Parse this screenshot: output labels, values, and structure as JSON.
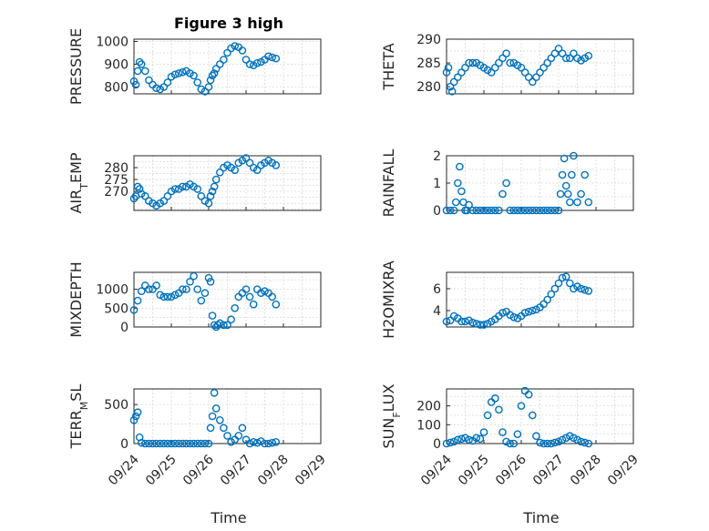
{
  "figure_title": "Figure 3 high",
  "x_label": "Time",
  "x_ticks": [
    "09/24",
    "09/25",
    "09/26",
    "09/27",
    "09/28",
    "09/29"
  ],
  "marker_color": "#0072bd",
  "chart_data": [
    {
      "type": "scatter",
      "ylabel_main": "PRESSURE",
      "ylabel_sub": "",
      "ylabel_tail": "",
      "yticks": [
        800,
        900,
        1000
      ],
      "ylim": [
        770,
        1010
      ],
      "x": [
        0,
        0.05,
        0.1,
        0.15,
        0.2,
        0.3,
        0.4,
        0.5,
        0.6,
        0.7,
        0.8,
        0.9,
        1.0,
        1.1,
        1.2,
        1.3,
        1.4,
        1.5,
        1.6,
        1.7,
        1.8,
        1.9,
        2.0,
        2.05,
        2.1,
        2.15,
        2.2,
        2.3,
        2.4,
        2.5,
        2.6,
        2.7,
        2.8,
        2.9,
        3.0,
        3.1,
        3.2,
        3.3,
        3.4,
        3.5,
        3.6,
        3.7,
        3.8
      ],
      "y": [
        825,
        810,
        870,
        910,
        900,
        870,
        830,
        810,
        795,
        790,
        800,
        820,
        845,
        855,
        860,
        865,
        870,
        860,
        850,
        820,
        790,
        780,
        800,
        830,
        850,
        860,
        880,
        900,
        920,
        950,
        970,
        980,
        975,
        960,
        920,
        900,
        895,
        905,
        910,
        920,
        935,
        930,
        925
      ]
    },
    {
      "type": "scatter",
      "ylabel_main": "THETA",
      "ylabel_sub": "",
      "ylabel_tail": "",
      "yticks": [
        280,
        285,
        290
      ],
      "ylim": [
        278.5,
        290
      ],
      "x": [
        0,
        0.05,
        0.1,
        0.15,
        0.2,
        0.3,
        0.4,
        0.5,
        0.6,
        0.7,
        0.8,
        0.9,
        1.0,
        1.1,
        1.2,
        1.3,
        1.4,
        1.5,
        1.6,
        1.7,
        1.8,
        1.9,
        2.0,
        2.1,
        2.2,
        2.3,
        2.4,
        2.5,
        2.6,
        2.7,
        2.8,
        2.9,
        3.0,
        3.1,
        3.2,
        3.3,
        3.4,
        3.5,
        3.6,
        3.7,
        3.8
      ],
      "y": [
        283,
        284,
        280,
        279,
        281,
        282,
        283,
        284,
        285,
        285,
        285,
        284.5,
        284,
        283.5,
        283,
        284,
        285,
        286,
        287,
        285,
        285,
        284.5,
        284,
        283,
        282,
        281,
        282,
        283,
        284,
        285,
        286,
        287,
        288,
        287,
        286,
        286,
        287,
        286,
        285.5,
        286,
        286.5
      ]
    },
    {
      "type": "scatter",
      "ylabel_main": "AIR",
      "ylabel_sub": "T",
      "ylabel_tail": "EMP",
      "yticks": [
        270,
        275,
        280
      ],
      "ylim": [
        262,
        285
      ],
      "x": [
        0,
        0.05,
        0.1,
        0.15,
        0.2,
        0.3,
        0.4,
        0.5,
        0.6,
        0.7,
        0.8,
        0.9,
        1.0,
        1.1,
        1.2,
        1.3,
        1.4,
        1.5,
        1.6,
        1.7,
        1.8,
        1.9,
        2.0,
        2.05,
        2.1,
        2.15,
        2.2,
        2.3,
        2.4,
        2.5,
        2.6,
        2.7,
        2.8,
        2.9,
        3.0,
        3.1,
        3.2,
        3.3,
        3.4,
        3.5,
        3.6,
        3.7,
        3.8
      ],
      "y": [
        267,
        268,
        272,
        271,
        269,
        268,
        266,
        265,
        264,
        265,
        266,
        268,
        270,
        271,
        271,
        272,
        272,
        273,
        272,
        271,
        268,
        266,
        265,
        268,
        270,
        272,
        275,
        278,
        280,
        281,
        280,
        279,
        282,
        283,
        284,
        282,
        280,
        279,
        281,
        282,
        283,
        282,
        281
      ]
    },
    {
      "type": "scatter",
      "ylabel_main": "RAINFALL",
      "ylabel_sub": "",
      "ylabel_tail": "",
      "yticks": [
        0,
        1,
        2
      ],
      "ylim": [
        0,
        2
      ],
      "x": [
        0,
        0.1,
        0.2,
        0.25,
        0.3,
        0.35,
        0.4,
        0.45,
        0.5,
        0.55,
        0.6,
        0.7,
        0.8,
        0.9,
        1.0,
        1.1,
        1.2,
        1.3,
        1.4,
        1.5,
        1.6,
        1.7,
        1.8,
        1.9,
        2.0,
        2.1,
        2.2,
        2.3,
        2.4,
        2.5,
        2.6,
        2.7,
        2.8,
        2.9,
        3.0,
        3.05,
        3.1,
        3.15,
        3.2,
        3.25,
        3.3,
        3.35,
        3.4,
        3.5,
        3.6,
        3.7,
        3.8
      ],
      "y": [
        0,
        0,
        0,
        0.3,
        1.0,
        1.6,
        0.7,
        0.3,
        0,
        0,
        0.2,
        0,
        0,
        0,
        0,
        0,
        0,
        0,
        0,
        0.6,
        1.0,
        0,
        0,
        0,
        0,
        0,
        0,
        0,
        0,
        0,
        0,
        0,
        0,
        0,
        0,
        0.6,
        1.3,
        1.9,
        0.9,
        0.6,
        0.3,
        1.3,
        2.0,
        0.3,
        0.6,
        1.3,
        0.3
      ]
    },
    {
      "type": "scatter",
      "ylabel_main": "MIXDEPTH",
      "ylabel_sub": "",
      "ylabel_tail": "",
      "yticks": [
        0,
        500,
        1000
      ],
      "ylim": [
        0,
        1450
      ],
      "x": [
        0,
        0.1,
        0.2,
        0.3,
        0.4,
        0.5,
        0.6,
        0.7,
        0.8,
        0.9,
        1.0,
        1.1,
        1.2,
        1.3,
        1.4,
        1.5,
        1.6,
        1.7,
        1.8,
        1.9,
        2.0,
        2.05,
        2.1,
        2.15,
        2.2,
        2.25,
        2.3,
        2.4,
        2.5,
        2.6,
        2.7,
        2.8,
        2.9,
        3.0,
        3.1,
        3.2,
        3.3,
        3.4,
        3.5,
        3.6,
        3.7,
        3.8
      ],
      "y": [
        450,
        700,
        950,
        1100,
        1000,
        1000,
        1100,
        850,
        800,
        800,
        800,
        850,
        900,
        1000,
        1000,
        1200,
        1350,
        1000,
        700,
        900,
        1300,
        1200,
        300,
        50,
        0,
        50,
        100,
        50,
        50,
        200,
        500,
        800,
        900,
        1000,
        800,
        600,
        1000,
        900,
        950,
        900,
        800,
        600
      ]
    },
    {
      "type": "scatter",
      "ylabel_main": "H2OMIXRA",
      "ylabel_sub": "",
      "ylabel_tail": "",
      "yticks": [
        4,
        6
      ],
      "ylim": [
        2.5,
        7.5
      ],
      "x": [
        0,
        0.1,
        0.2,
        0.3,
        0.4,
        0.5,
        0.6,
        0.7,
        0.8,
        0.9,
        1.0,
        1.1,
        1.2,
        1.3,
        1.4,
        1.5,
        1.6,
        1.7,
        1.8,
        1.9,
        2.0,
        2.1,
        2.2,
        2.3,
        2.4,
        2.5,
        2.6,
        2.7,
        2.8,
        2.9,
        3.0,
        3.1,
        3.2,
        3.3,
        3.4,
        3.5,
        3.6,
        3.7,
        3.8
      ],
      "y": [
        3,
        3.1,
        3.5,
        3.3,
        3.0,
        3.0,
        3.1,
        2.9,
        2.8,
        2.7,
        2.7,
        2.8,
        3.0,
        3.2,
        3.5,
        3.8,
        3.9,
        3.6,
        3.4,
        3.3,
        3.5,
        3.8,
        3.9,
        4.0,
        4.1,
        4.3,
        4.6,
        5.0,
        5.5,
        6.0,
        6.5,
        7.0,
        7.1,
        6.5,
        6.0,
        6.2,
        6.0,
        5.9,
        5.8
      ]
    },
    {
      "type": "scatter",
      "ylabel_main": "TERR",
      "ylabel_sub": "M",
      "ylabel_tail": "SL",
      "yticks": [
        0,
        500
      ],
      "ylim": [
        0,
        700
      ],
      "x": [
        0,
        0.05,
        0.1,
        0.15,
        0.2,
        0.3,
        0.4,
        0.5,
        0.6,
        0.7,
        0.8,
        0.9,
        1.0,
        1.1,
        1.2,
        1.3,
        1.4,
        1.5,
        1.6,
        1.7,
        1.8,
        1.9,
        2.0,
        2.05,
        2.1,
        2.15,
        2.2,
        2.3,
        2.4,
        2.5,
        2.6,
        2.7,
        2.8,
        2.9,
        3.0,
        3.1,
        3.2,
        3.3,
        3.4,
        3.5,
        3.6,
        3.7,
        3.8
      ],
      "y": [
        300,
        350,
        400,
        80,
        10,
        0,
        0,
        0,
        0,
        0,
        0,
        0,
        0,
        0,
        0,
        0,
        0,
        0,
        0,
        0,
        0,
        0,
        0,
        200,
        350,
        650,
        450,
        300,
        200,
        100,
        20,
        50,
        100,
        200,
        50,
        0,
        20,
        10,
        30,
        0,
        0,
        10,
        20
      ]
    },
    {
      "type": "scatter",
      "ylabel_main": "SUN",
      "ylabel_sub": "F",
      "ylabel_tail": "LUX",
      "yticks": [
        0,
        100,
        200
      ],
      "ylim": [
        0,
        290
      ],
      "x": [
        0,
        0.1,
        0.2,
        0.3,
        0.4,
        0.5,
        0.6,
        0.7,
        0.8,
        0.9,
        1.0,
        1.1,
        1.2,
        1.3,
        1.4,
        1.5,
        1.6,
        1.7,
        1.8,
        1.9,
        2.0,
        2.1,
        2.2,
        2.3,
        2.4,
        2.5,
        2.6,
        2.7,
        2.8,
        2.9,
        3.0,
        3.1,
        3.2,
        3.3,
        3.4,
        3.5,
        3.6,
        3.7,
        3.8
      ],
      "y": [
        0,
        5,
        10,
        20,
        25,
        30,
        20,
        15,
        30,
        25,
        60,
        150,
        220,
        240,
        180,
        60,
        10,
        0,
        0,
        50,
        200,
        280,
        260,
        150,
        40,
        5,
        0,
        0,
        0,
        5,
        10,
        20,
        30,
        40,
        30,
        20,
        10,
        5,
        0
      ]
    }
  ]
}
